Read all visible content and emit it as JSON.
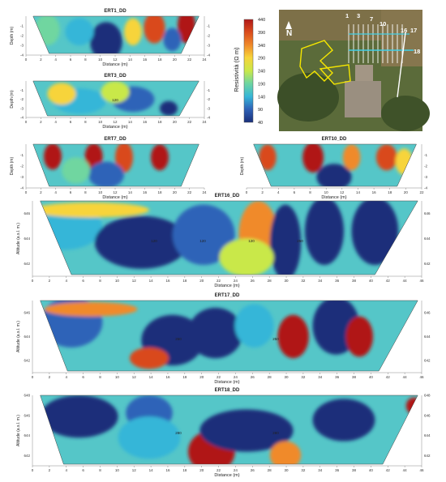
{
  "chart_data": [
    {
      "type": "heatmap",
      "title": "ERT1_DD",
      "xlabel": "Distance (m)",
      "ylabel": "Depth (m)",
      "xlim": [
        0,
        24
      ],
      "ylim": [
        -4,
        0
      ],
      "x_ticks": [
        0,
        2,
        4,
        6,
        8,
        10,
        12,
        14,
        16,
        18,
        20,
        22,
        24
      ],
      "y_ticks": [
        -1,
        -2,
        -3,
        -4
      ]
    },
    {
      "type": "heatmap",
      "title": "ERT3_DD",
      "xlabel": "Distance (m)",
      "ylabel": "Depth (m)",
      "xlim": [
        0,
        24
      ],
      "ylim": [
        -4,
        0
      ],
      "x_ticks": [
        0,
        2,
        4,
        6,
        8,
        10,
        12,
        14,
        16,
        18,
        20,
        22,
        24
      ],
      "y_ticks": [
        -1,
        -2,
        -3,
        -4
      ],
      "contour_labels": [
        "120"
      ]
    },
    {
      "type": "heatmap",
      "title": "ERT7_DD",
      "xlabel": "Distance (m)",
      "ylabel": "Depth (m)",
      "xlim": [
        0,
        24
      ],
      "ylim": [
        -4,
        0
      ],
      "x_ticks": [
        0,
        2,
        4,
        6,
        8,
        10,
        12,
        14,
        16,
        18,
        20,
        22,
        24
      ],
      "y_ticks": [
        -1,
        -2,
        -3,
        -4
      ]
    },
    {
      "type": "heatmap",
      "title": "ERT10_DD",
      "xlabel": "Distance (m)",
      "ylabel": "Depth (m)",
      "xlim": [
        0,
        22
      ],
      "ylim": [
        -4,
        0
      ],
      "x_ticks": [
        0,
        2,
        4,
        6,
        8,
        10,
        12,
        14,
        16,
        18,
        20,
        22
      ],
      "y_ticks": [
        -1,
        -2,
        -3,
        -4
      ]
    },
    {
      "type": "heatmap",
      "title": "ERT16_DD",
      "xlabel": "Distance (m)",
      "ylabel": "Altitude (a.s.l. m.)",
      "xlim": [
        0,
        46
      ],
      "ylim": [
        641,
        647
      ],
      "x_ticks": [
        0,
        2,
        4,
        6,
        8,
        10,
        12,
        14,
        16,
        18,
        20,
        22,
        24,
        26,
        28,
        30,
        32,
        34,
        36,
        38,
        40,
        42,
        44,
        46
      ],
      "y_ticks": [
        646,
        644,
        642
      ],
      "contour_labels": [
        "120",
        "120",
        "120",
        "250"
      ]
    },
    {
      "type": "heatmap",
      "title": "ERT17_DD",
      "xlabel": "Distance (m)",
      "ylabel": "Altitude (a.s.l. m.)",
      "xlim": [
        0,
        46
      ],
      "ylim": [
        641,
        647
      ],
      "x_ticks": [
        0,
        2,
        4,
        6,
        8,
        10,
        12,
        14,
        16,
        18,
        20,
        22,
        24,
        26,
        28,
        30,
        32,
        34,
        36,
        38,
        40,
        42,
        44,
        46
      ],
      "y_ticks": [
        646,
        644,
        642
      ],
      "contour_labels": [
        "250",
        "250"
      ]
    },
    {
      "type": "heatmap",
      "title": "ERT18_DD",
      "xlabel": "Distance (m)",
      "ylabel": "Altitude (a.s.l. m.)",
      "xlim": [
        0,
        46
      ],
      "ylim": [
        641,
        648
      ],
      "x_ticks": [
        0,
        2,
        4,
        6,
        8,
        10,
        12,
        14,
        16,
        18,
        20,
        22,
        24,
        26,
        28,
        30,
        32,
        34,
        36,
        38,
        40,
        42,
        44,
        46
      ],
      "y_ticks": [
        648,
        646,
        644,
        642
      ],
      "contour_labels": [
        "280",
        "280"
      ]
    }
  ],
  "colorbar": {
    "label": "Resistività (Ω m)",
    "ticks": [
      440,
      390,
      340,
      290,
      240,
      190,
      140,
      90,
      40
    ],
    "colors": [
      "#b01818",
      "#d94a1c",
      "#f08a2a",
      "#f7d43a",
      "#c9e84a",
      "#6fd6a0",
      "#36b6d8",
      "#2f63b8",
      "#1a2f7a"
    ]
  },
  "map": {
    "north_label": "N",
    "line_labels": [
      "1",
      "3",
      "7",
      "10",
      "16",
      "17",
      "18"
    ]
  }
}
